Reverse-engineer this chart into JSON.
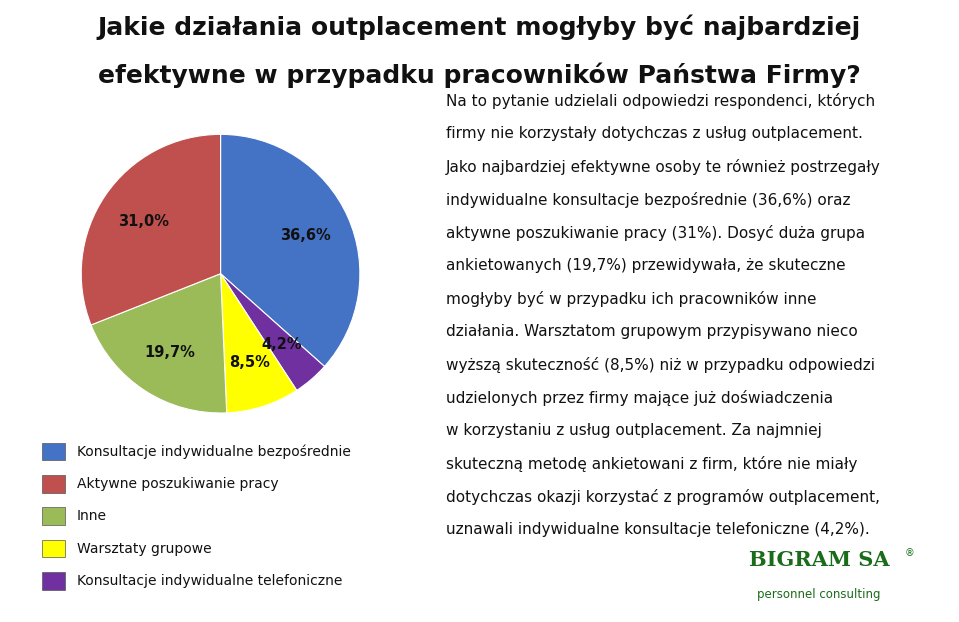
{
  "title_line1": "Jakie działania outplacement mogłyby być najbardziej",
  "title_line2": "efektywne w przypadku pracowników Państwa Firmy?",
  "slices": [
    36.6,
    31.0,
    19.7,
    8.5,
    4.2
  ],
  "labels": [
    "36,6%",
    "31,0%",
    "19,7%",
    "8,5%",
    "4,2%"
  ],
  "colors": [
    "#4472C4",
    "#C0504D",
    "#9BBB59",
    "#FFFF00",
    "#7030A0"
  ],
  "legend_labels": [
    "Konsultacje indywidualne bezpośrednie",
    "Aktywne poszukiwanie pracy",
    "Inne",
    "Warsztaty grupowe",
    "Konsultacje indywidualne telefoniczne"
  ],
  "body_lines": [
    "Na to pytanie udzielali odpowiedzi respondenci, których",
    "firmy nie korzystały dotychczas z usług outplacement.",
    "Jako najbardziej efektywne osoby te również postrzegały",
    "indywidualne konsultacje bezpośrednie (36,6%) oraz",
    "aktywne poszukiwanie pracy (31%). Dosyć duża grupa",
    "ankietowanych (19,7%) przewidywała, że skuteczne",
    "mogłyby być w przypadku ich pracowników inne",
    "działania. Warsztatom grupowym przypisywano nieco",
    "wyższą skuteczność (8,5%) niż w przypadku odpowiedzi",
    "udzielonych przez firmy mające już doświadczenia",
    "w korzystaniu z usług outplacement. Za najmniej",
    "skuteczną metodę ankietowani z firm, które nie miały",
    "dotychczas okazji korzystać z programów outplacement,",
    "uznawali indywidualne konsultacje telefoniczne (4,2%)."
  ],
  "bigram_text": "BIGRAM SA",
  "bigram_sub": "personnel consulting",
  "background_color": "#FFFFFF",
  "bottom_bar_color": "#7EC83A",
  "title_fontsize": 18,
  "body_fontsize": 11,
  "legend_fontsize": 10
}
